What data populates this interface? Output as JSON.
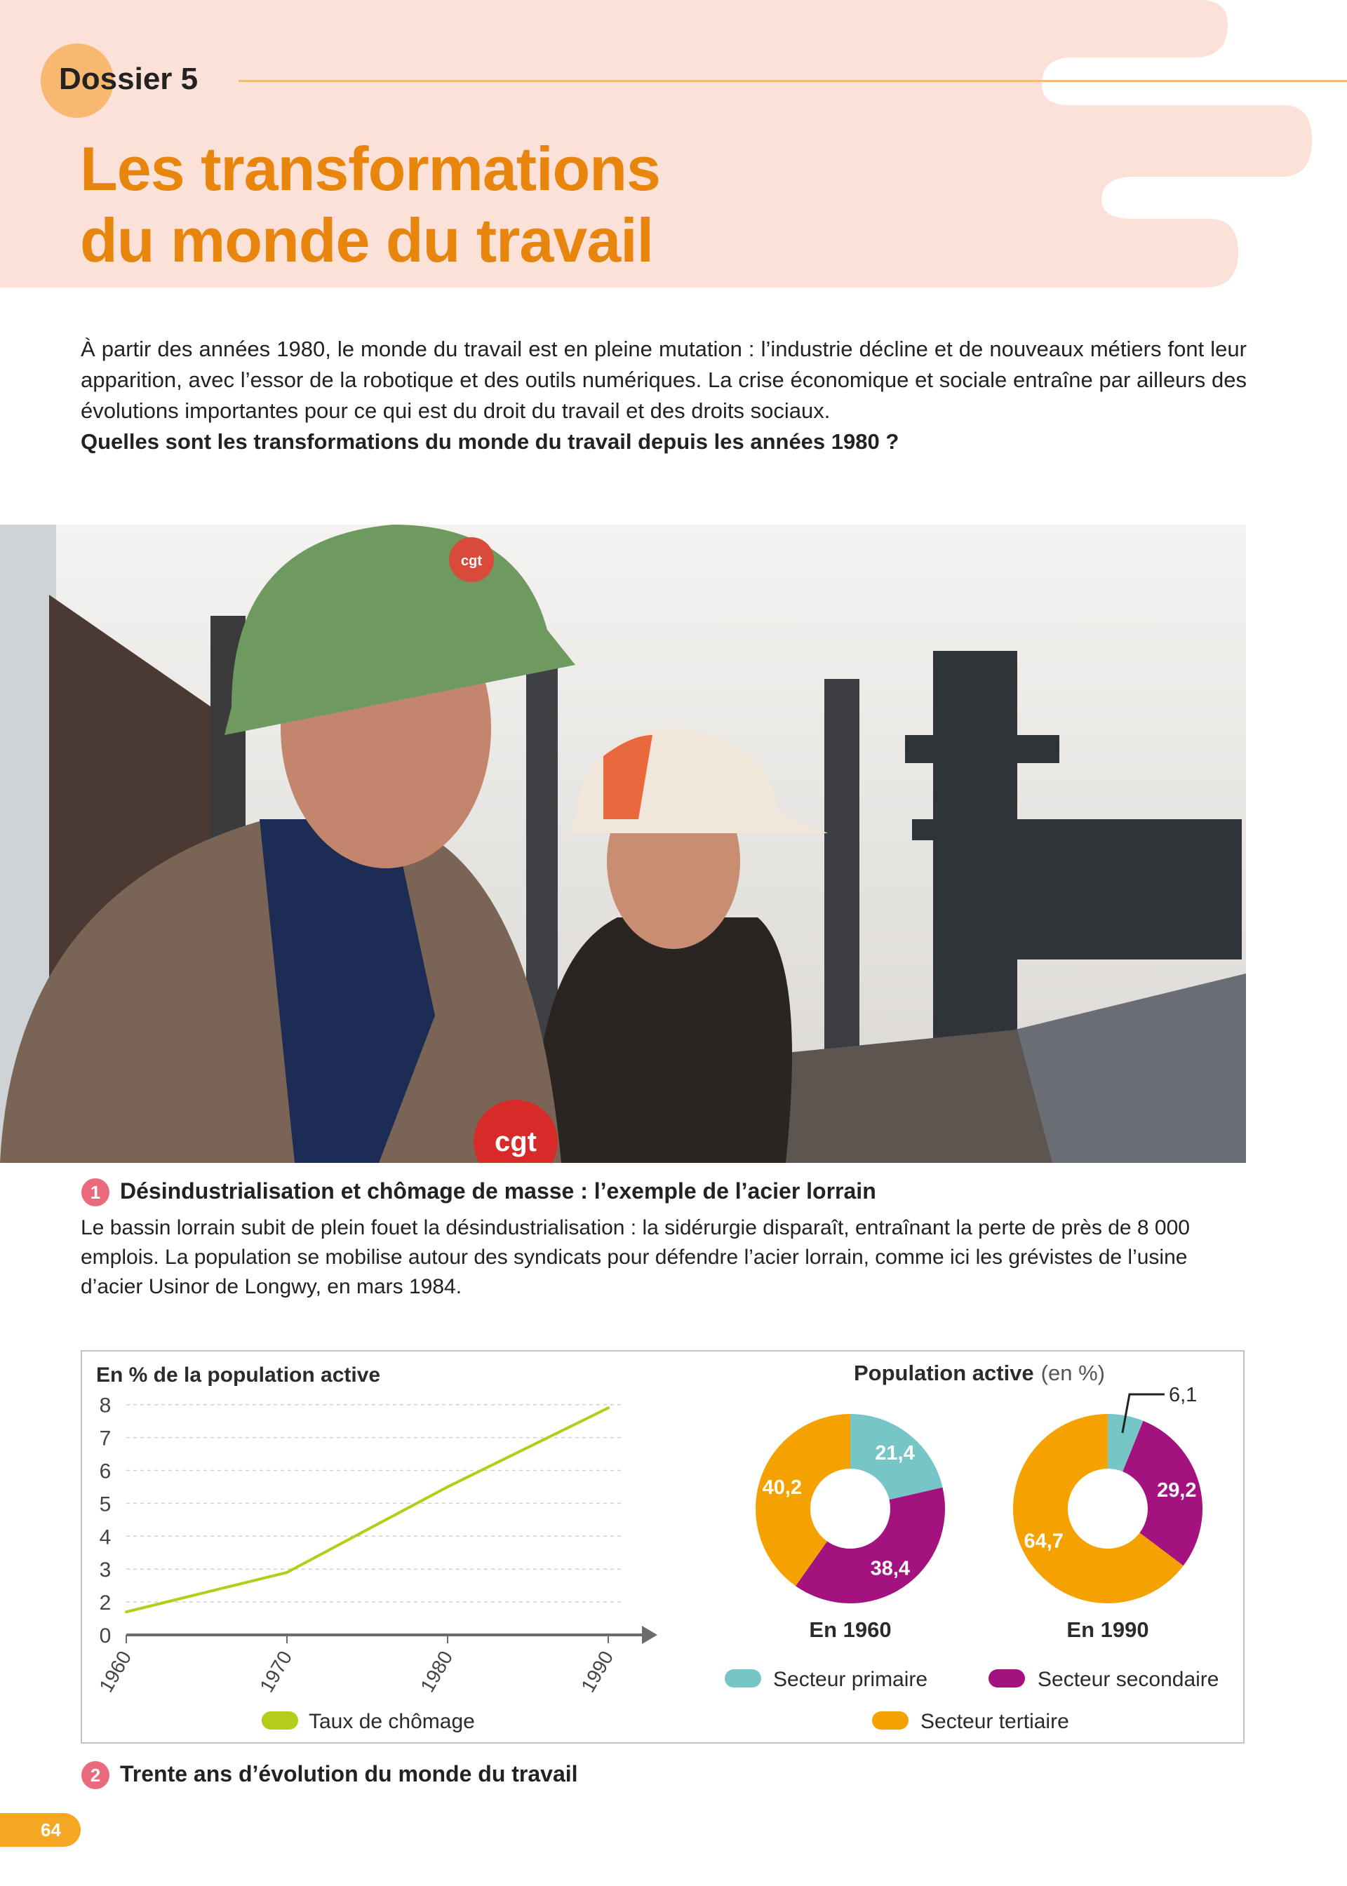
{
  "header": {
    "dossier_label": "Dossier 5",
    "title_line1": "Les transformations",
    "title_line2": "du monde du travail",
    "band_color": "#fce1d8",
    "accent_color": "#e8850c"
  },
  "intro": {
    "text": "À partir des années 1980, le monde du travail est en pleine mutation : l’industrie décline et de nouveaux métiers font leur apparition, avec l’essor de la robotique et des outils numériques. La crise économique et sociale entraîne par ailleurs des évolutions importantes pour ce qui est du droit du travail et des droits sociaux.",
    "question": "Quelles sont les transformations du monde du travail depuis les années 1980 ?"
  },
  "photo": {
    "badge_text_1": "cgt",
    "badge_text_2": "cgt"
  },
  "doc1": {
    "number": "1",
    "title": "Désindustrialisation et chômage de masse : l’exemple de l’acier lorrain",
    "body": "Le bassin lorrain subit de plein fouet la désindustrialisation : la sidérurgie disparaît, entraînant la perte de près de 8 000 emplois. La population se mobilise autour des syndicats pour défendre l’acier lorrain, comme ici les grévistes de l’usine d’acier Usinor de Longwy, en mars 1984."
  },
  "doc2": {
    "number": "2",
    "title": "Trente ans d’évolution du monde du travail"
  },
  "chart_data": [
    {
      "type": "line",
      "ylabel": "En % de la population active",
      "x": [
        1960,
        1970,
        1980,
        1990
      ],
      "x_tick_labels": [
        "1960",
        "1970",
        "1980",
        "1990"
      ],
      "y_tick_labels": [
        "0",
        "2",
        "3",
        "4",
        "5",
        "6",
        "7",
        "8"
      ],
      "y_ticks": [
        0,
        2,
        3,
        4,
        5,
        6,
        7,
        8
      ],
      "ylim": [
        0,
        8
      ],
      "axis_break": "between 0 and 2",
      "grid": "dashed horizontal",
      "series": [
        {
          "name": "Taux de chômage",
          "values": [
            1.4,
            2.9,
            5.5,
            7.9
          ],
          "color": "#b5cc18"
        }
      ],
      "legend": "bottom"
    },
    {
      "type": "pie",
      "title_bold": "Population active",
      "title_suffix": "(en %)",
      "donut": true,
      "categories": [
        "Secteur primaire",
        "Secteur secondaire",
        "Secteur tertiaire"
      ],
      "colors": [
        "#76c6c8",
        "#a3127f",
        "#f5a200"
      ],
      "series": [
        {
          "label": "En 1960",
          "values": [
            21.4,
            38.4,
            40.2
          ],
          "value_labels": [
            "21,4",
            "38,4",
            "40,2"
          ]
        },
        {
          "label": "En 1990",
          "values": [
            6.1,
            29.2,
            64.7
          ],
          "value_labels": [
            "6,1",
            "29,2",
            "64,7"
          ]
        }
      ],
      "legend": "bottom"
    }
  ],
  "page": {
    "number": "64",
    "color": "#f5a623"
  }
}
